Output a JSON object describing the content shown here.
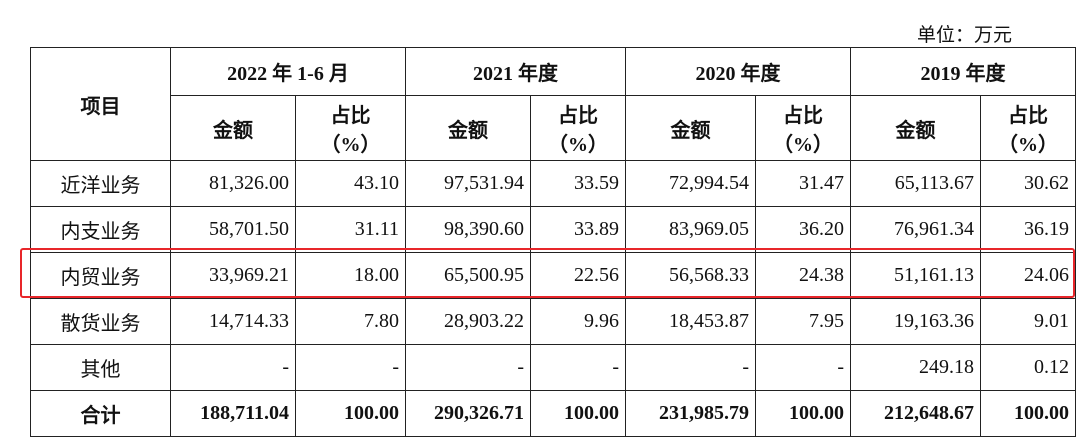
{
  "unit": "单位：万元",
  "header": {
    "item": "项目",
    "periods": [
      {
        "label": "2022 年 1-6 月",
        "amount": "金额",
        "ratio": [
          "占比",
          "（%）"
        ]
      },
      {
        "label": "2021 年度",
        "amount": "金额",
        "ratio": [
          "占比",
          "（%）"
        ]
      },
      {
        "label": "2020 年度",
        "amount": "金额",
        "ratio": [
          "占比",
          "（%）"
        ]
      },
      {
        "label": "2019 年度",
        "amount": "金额",
        "ratio": [
          "占比",
          "（%）"
        ]
      }
    ]
  },
  "table": {
    "rows": [
      [
        "近洋业务",
        "81,326.00",
        "43.10",
        "97,531.94",
        "33.59",
        "72,994.54",
        "31.47",
        "65,113.67",
        "30.62"
      ],
      [
        "内支业务",
        "58,701.50",
        "31.11",
        "98,390.60",
        "33.89",
        "83,969.05",
        "36.20",
        "76,961.34",
        "36.19"
      ],
      [
        "内贸业务",
        "33,969.21",
        "18.00",
        "65,500.95",
        "22.56",
        "56,568.33",
        "24.38",
        "51,161.13",
        "24.06"
      ],
      [
        "散货业务",
        "14,714.33",
        "7.80",
        "28,903.22",
        "9.96",
        "18,453.87",
        "7.95",
        "19,163.36",
        "9.01"
      ],
      [
        "其他",
        "-",
        "-",
        "-",
        "-",
        "-",
        "-",
        "249.18",
        "0.12"
      ],
      [
        "合计",
        "188,711.04",
        "100.00",
        "290,326.71",
        "100.00",
        "231,985.79",
        "100.00",
        "212,648.67",
        "100.00"
      ]
    ]
  }
}
